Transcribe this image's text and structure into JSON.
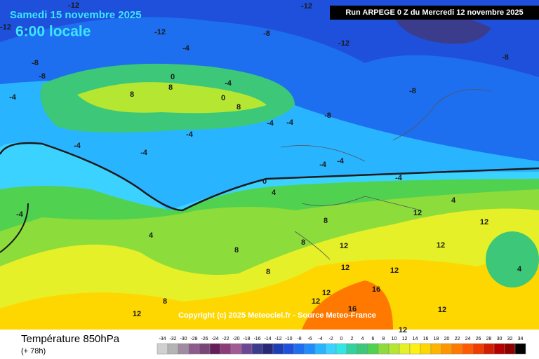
{
  "header": {
    "date": "Samedi 15 novembre 2025",
    "time": "6:00 locale",
    "run": "Run ARPEGE 0 Z du Mercredi 12 novembre 2025"
  },
  "copyright": "Copyright (c) 2025 Meteociel.fr - Source Meteo-France",
  "legend": {
    "title": "Température 850hPa",
    "subtitle": "(+ 78h)",
    "ticks": [
      -34,
      -32,
      -30,
      -28,
      -26,
      -24,
      -22,
      -20,
      -18,
      -16,
      -14,
      -12,
      -10,
      -8,
      -6,
      -4,
      -2,
      0,
      2,
      4,
      6,
      8,
      10,
      12,
      14,
      16,
      18,
      20,
      22,
      24,
      26,
      28,
      30,
      32,
      34
    ],
    "colors": [
      "#d0d0d0",
      "#b4b4b4",
      "#a08ca0",
      "#8c5a8c",
      "#784678",
      "#641e5a",
      "#8c3c78",
      "#a05a96",
      "#6e4696",
      "#3c3c8c",
      "#282878",
      "#1e3cb4",
      "#1e50dc",
      "#1e6ef0",
      "#1e8cff",
      "#28b4ff",
      "#3cd2ff",
      "#32e6e6",
      "#32d2a0",
      "#3cc878",
      "#50d250",
      "#8cdc3c",
      "#b4e632",
      "#e6f028",
      "#fff014",
      "#ffd700",
      "#ffb400",
      "#ff9600",
      "#ff7800",
      "#ff5a00",
      "#f03c00",
      "#d21e00",
      "#b40000",
      "#8c0000",
      "#000000"
    ]
  },
  "contour_labels": [
    -12,
    -12,
    -12,
    -12,
    -8,
    -12,
    -8,
    -4,
    -8,
    -8,
    -4,
    0,
    -4,
    8,
    8,
    0,
    8,
    -8,
    -4,
    -4,
    -4,
    -4,
    -4,
    -4,
    -4,
    -4,
    0,
    4,
    -8,
    8,
    12,
    8,
    12,
    8,
    4,
    12,
    12,
    12,
    12,
    12,
    16,
    16,
    12,
    12,
    12,
    12,
    8,
    8,
    4,
    -4,
    4
  ]
}
